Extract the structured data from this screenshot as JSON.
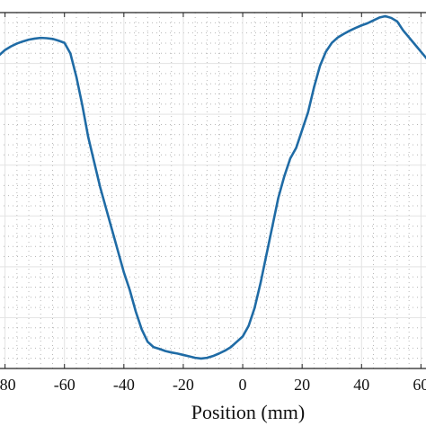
{
  "chart_data": {
    "type": "line",
    "title": "",
    "xlabel": "Position (mm)",
    "ylabel": "",
    "xlim": [
      -82,
      62
    ],
    "ylim": [
      0,
      1
    ],
    "x_ticks": [
      -80,
      -60,
      -40,
      -20,
      0,
      20,
      40,
      60
    ],
    "x_tick_labels": [
      "-80",
      "-60",
      "-40",
      "-20",
      "0",
      "20",
      "40",
      "60"
    ],
    "grid": "on",
    "minor_grid": "on",
    "legend": "none",
    "colors": {
      "series": "#1f6ba5",
      "major_grid": "#e3e3e3",
      "minor_grid": "#b8b8b8",
      "axes": "#222222"
    },
    "series": [
      {
        "x": [
          -82,
          -80,
          -78,
          -76,
          -74,
          -72,
          -70,
          -68,
          -66,
          -64,
          -62,
          -60,
          -58,
          -56,
          -54,
          -52,
          -50,
          -48,
          -46,
          -44,
          -42,
          -40,
          -38,
          -36,
          -34,
          -32,
          -30,
          -28,
          -26,
          -24,
          -22,
          -20,
          -18,
          -16,
          -14,
          -12,
          -10,
          -8,
          -6,
          -4,
          -2,
          0,
          2,
          4,
          6,
          8,
          10,
          12,
          14,
          16,
          18,
          20,
          22,
          24,
          26,
          28,
          30,
          32,
          34,
          36,
          38,
          40,
          42,
          44,
          46,
          48,
          50,
          52,
          54,
          56,
          58,
          60,
          62
        ],
        "values": [
          0.88,
          0.895,
          0.905,
          0.913,
          0.919,
          0.924,
          0.927,
          0.929,
          0.928,
          0.926,
          0.921,
          0.915,
          0.885,
          0.82,
          0.74,
          0.65,
          0.58,
          0.51,
          0.45,
          0.39,
          0.33,
          0.27,
          0.22,
          0.16,
          0.11,
          0.075,
          0.06,
          0.055,
          0.049,
          0.045,
          0.042,
          0.038,
          0.034,
          0.03,
          0.028,
          0.03,
          0.035,
          0.042,
          0.05,
          0.06,
          0.075,
          0.09,
          0.12,
          0.17,
          0.24,
          0.32,
          0.4,
          0.48,
          0.54,
          0.59,
          0.62,
          0.67,
          0.72,
          0.79,
          0.85,
          0.89,
          0.915,
          0.93,
          0.94,
          0.949,
          0.957,
          0.964,
          0.97,
          0.978,
          0.986,
          0.99,
          0.985,
          0.975,
          0.95,
          0.93,
          0.91,
          0.89,
          0.87
        ]
      }
    ]
  }
}
